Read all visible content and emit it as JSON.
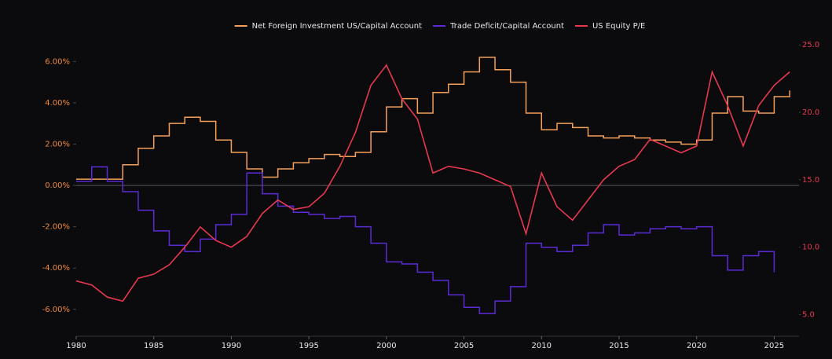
{
  "chart_data": {
    "type": "line",
    "x": [
      1980,
      1981,
      1982,
      1983,
      1984,
      1985,
      1986,
      1987,
      1988,
      1989,
      1990,
      1991,
      1992,
      1993,
      1994,
      1995,
      1996,
      1997,
      1998,
      1999,
      2000,
      2001,
      2002,
      2003,
      2004,
      2005,
      2006,
      2007,
      2008,
      2009,
      2010,
      2011,
      2012,
      2013,
      2014,
      2015,
      2016,
      2017,
      2018,
      2019,
      2020,
      2021,
      2022,
      2023,
      2024,
      2025,
      2026
    ],
    "series": [
      {
        "name": "Net Foreign Investment US/Capital Account",
        "color": "#f5a05a",
        "step": true,
        "values": [
          0.3,
          0.3,
          0.3,
          1.0,
          1.8,
          2.4,
          3.0,
          3.3,
          3.1,
          2.2,
          1.6,
          0.8,
          0.4,
          0.8,
          1.1,
          1.3,
          1.5,
          1.4,
          1.6,
          2.6,
          3.8,
          4.2,
          3.5,
          4.5,
          4.9,
          5.5,
          6.2,
          5.6,
          5.0,
          3.5,
          2.7,
          3.0,
          2.8,
          2.4,
          2.3,
          2.4,
          2.3,
          2.2,
          2.1,
          2.0,
          2.2,
          3.5,
          4.3,
          3.6,
          3.5,
          4.3,
          4.6
        ]
      },
      {
        "name": "Trade Deficit/Capital Account",
        "color": "#5b2bd6",
        "step": true,
        "values": [
          0.2,
          0.9,
          0.2,
          -0.3,
          -1.2,
          -2.2,
          -2.9,
          -3.2,
          -2.6,
          -1.9,
          -1.4,
          0.6,
          -0.4,
          -1.0,
          -1.3,
          -1.4,
          -1.6,
          -1.5,
          -2.0,
          -2.8,
          -3.7,
          -3.8,
          -4.2,
          -4.6,
          -5.3,
          -5.9,
          -6.2,
          -5.6,
          -4.9,
          -2.8,
          -3.0,
          -3.2,
          -2.9,
          -2.3,
          -1.9,
          -2.4,
          -2.3,
          -2.1,
          -2.0,
          -2.1,
          -2.0,
          -3.4,
          -4.1,
          -3.4,
          -3.2,
          -4.2,
          null
        ]
      },
      {
        "name": "US Equity P/E",
        "color": "#e8384f",
        "axis": "y2",
        "values": [
          7.5,
          7.2,
          6.3,
          6.0,
          7.7,
          8.0,
          8.7,
          10.0,
          11.5,
          10.5,
          10.0,
          10.8,
          12.5,
          13.5,
          12.8,
          13.0,
          14.0,
          16.0,
          18.5,
          22.0,
          23.5,
          21.0,
          19.5,
          15.5,
          16.0,
          15.8,
          15.5,
          15.0,
          14.5,
          11.0,
          15.5,
          13.0,
          12.0,
          13.5,
          15.0,
          16.0,
          16.5,
          18.0,
          17.5,
          17.0,
          17.5,
          23.0,
          20.5,
          17.5,
          20.5,
          22.0,
          23.0
        ]
      }
    ],
    "xlim": [
      1980,
      2026.6
    ],
    "xticks": [
      1980,
      1985,
      1990,
      1995,
      2000,
      2005,
      2010,
      2015,
      2020,
      2025
    ],
    "ylim": [
      -7.3,
      7.0
    ],
    "yticks": [
      {
        "value": -6,
        "label": "-6.00%"
      },
      {
        "value": -4,
        "label": "-4.00%"
      },
      {
        "value": -2,
        "label": "-2.00%"
      },
      {
        "value": 0,
        "label": "0.00%"
      },
      {
        "value": 2,
        "label": "2.00%"
      },
      {
        "value": 4,
        "label": "4.00%"
      },
      {
        "value": 6,
        "label": "6.00%"
      }
    ],
    "y2lim": [
      3.4,
      25.3
    ],
    "y2ticks": [
      {
        "value": 5,
        "label": "5.0"
      },
      {
        "value": 10,
        "label": "10.0"
      },
      {
        "value": 15,
        "label": "15.0"
      },
      {
        "value": 20,
        "label": "20.0"
      },
      {
        "value": 25,
        "label": "25.0"
      }
    ],
    "legend": "top"
  }
}
